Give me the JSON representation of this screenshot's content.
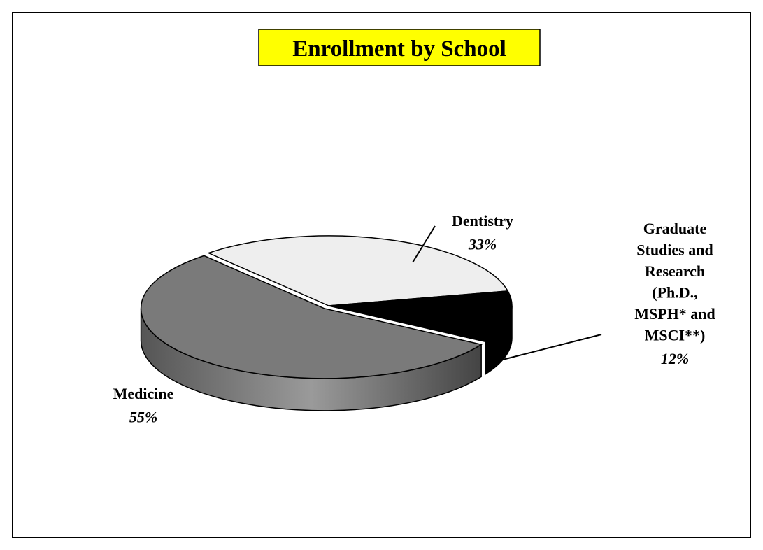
{
  "chart_data": {
    "type": "pie",
    "title": "Enrollment by School",
    "categories": [
      "Dentistry",
      "Graduate Studies and Research (Ph.D., MSPH* and MSCI**)",
      "Medicine"
    ],
    "values": [
      33,
      12,
      55
    ],
    "value_labels": [
      "33%",
      "12%",
      "55%"
    ],
    "colors": [
      "#eeeeee",
      "#000000",
      "#7a7a7a"
    ]
  }
}
